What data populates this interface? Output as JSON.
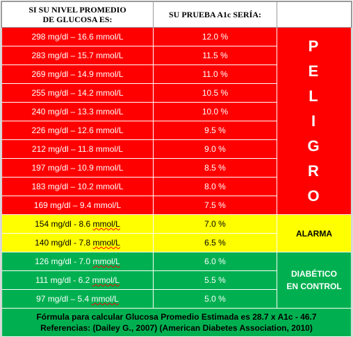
{
  "header": {
    "col1_line1": "SI SU NIVEL PROMEDIO",
    "col1_line2": "DE GLUCOSA ES:",
    "col2": "SU PRUEBA  A1c  SERÍA:",
    "col3": ""
  },
  "rows": [
    {
      "glucose": "298 mg/dl – 16.6 mmol/L",
      "a1c": "12.0 %"
    },
    {
      "glucose": "283 mg/dl – 15.7 mmol/L",
      "a1c": "11.5 %"
    },
    {
      "glucose": "269 mg/dl – 14.9 mmol/L",
      "a1c": "11.0 %"
    },
    {
      "glucose": "255 mg/dl – 14.2 mmol/L",
      "a1c": "10.5 %"
    },
    {
      "glucose": "240 mg/dl – 13.3 mmol/L",
      "a1c": "10.0 %"
    },
    {
      "glucose": "226 mg/dl – 12.6 mmol/L",
      "a1c": "9.5 %"
    },
    {
      "glucose": "212 mg/dl – 11.8 mmol/L",
      "a1c": "9.0 %"
    },
    {
      "glucose": "197 mg/dl – 10.9 mmol/L",
      "a1c": "8.5 %"
    },
    {
      "glucose": "183 mg/dl – 10.2 mmol/L",
      "a1c": "8.0 %"
    },
    {
      "glucose": "169 mg/dl – 9.4 mmol/L",
      "a1c": "7.5 %"
    },
    {
      "glucose_main": "154 mg/dl - 8.6 ",
      "glucose_unit": "mmol/L",
      "a1c": "7.0 %"
    },
    {
      "glucose_main": "140 mg/dl - 7.8 ",
      "glucose_unit": "mmol/L",
      "a1c": "6.5 %"
    },
    {
      "glucose_main": "126 mg/dl - 7.0 ",
      "glucose_unit": "mmol/L",
      "a1c": "6.0 %"
    },
    {
      "glucose_main": "111 mg/dl - 6.2 ",
      "glucose_unit": "mmol/L",
      "a1c": "5.5 %"
    },
    {
      "glucose_main": "97 mg/dl – 5.4 ",
      "glucose_unit": "mmol/L",
      "a1c": "5.0 %"
    }
  ],
  "zones": {
    "danger_letters": [
      "P",
      "E",
      "L",
      "I",
      "G",
      "R",
      "O"
    ],
    "alarm": "ALARMA",
    "diabetic_line1": "DIABÉTICO",
    "diabetic_line2": "EN CONTROL"
  },
  "footer": {
    "line1": "Fórmula para calcular Glucosa Promedio Estimada es 28.7 x A1c - 46.7",
    "line2": "Referencias: (Dailey G., 2007) (American Diabetes Association, 2010)"
  },
  "colors": {
    "danger": "#ff0000",
    "alarm": "#ffff00",
    "control": "#00b050"
  }
}
